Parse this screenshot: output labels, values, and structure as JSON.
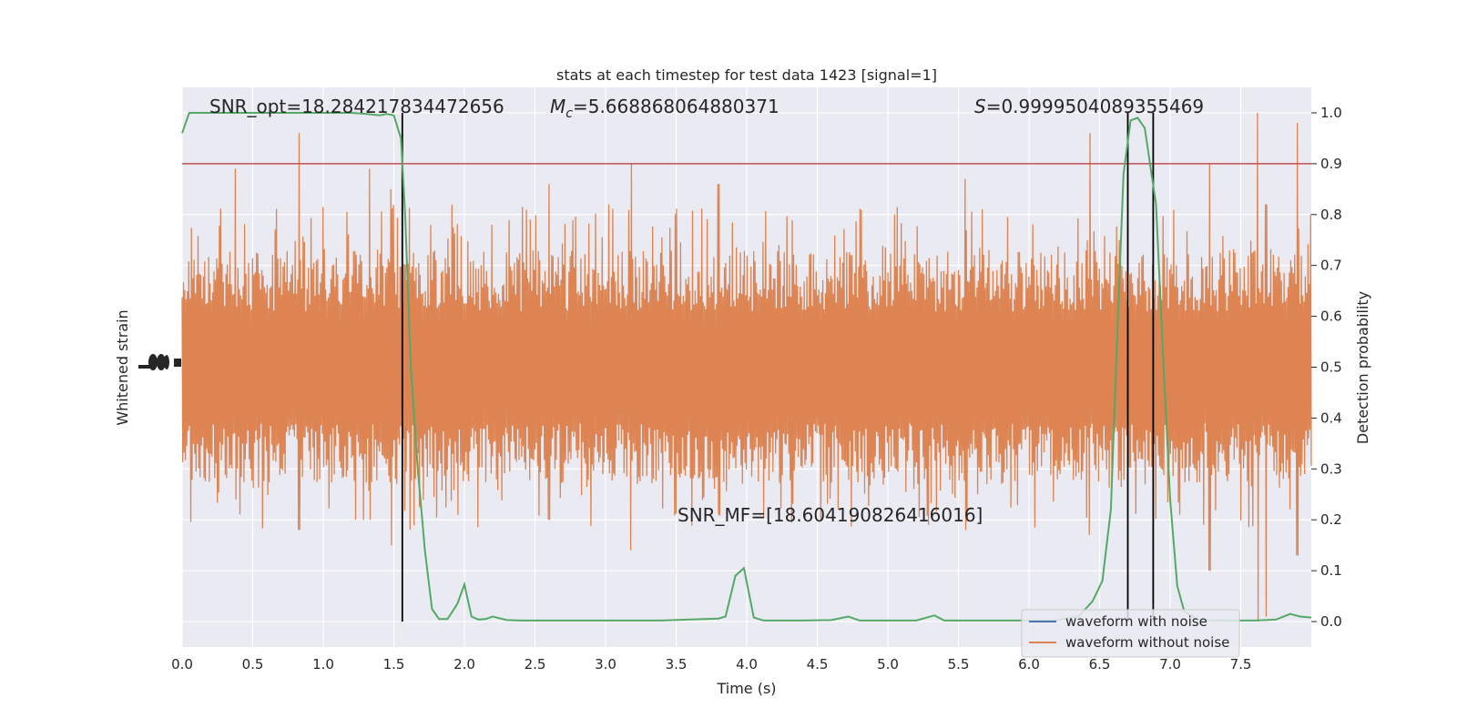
{
  "chart_data": {
    "type": "line",
    "title": "stats at each timestep for test data 1423 [signal=1]",
    "xlabel": "Time (s)",
    "ylabel_left": "Whitened strain",
    "ylabel_right": "Detection probability",
    "xlim": [
      0,
      8
    ],
    "ylim_right": [
      -0.05,
      1.05
    ],
    "x_ticks": [
      0,
      0.5,
      1.0,
      1.5,
      2.0,
      2.5,
      3.0,
      3.5,
      4.0,
      4.5,
      5.0,
      5.5,
      6.0,
      6.5,
      7.0,
      7.5
    ],
    "x_tick_labels": [
      "0.0",
      "0.5",
      "1.0",
      "1.5",
      "2.0",
      "2.5",
      "3.0",
      "3.5",
      "4.0",
      "4.5",
      "5.0",
      "5.5",
      "6.0",
      "6.5",
      "7.0",
      "7.5"
    ],
    "y_right_ticks": [
      0.0,
      0.1,
      0.2,
      0.3,
      0.4,
      0.5,
      0.6,
      0.7,
      0.8,
      0.9,
      1.0
    ],
    "y_right_tick_labels": [
      "0.0",
      "0.1",
      "0.2",
      "0.3",
      "0.4",
      "0.5",
      "0.6",
      "0.7",
      "0.8",
      "0.9",
      "1.0"
    ],
    "grid": true,
    "legend_position": "lower-right",
    "colors": {
      "background": "#eaeaf2",
      "grid": "#ffffff",
      "waveform_with_noise": "#4c72b0",
      "waveform_without_noise": "#dd8452",
      "probability": "#55a868",
      "threshold": "#c44e52",
      "event_line": "#000000"
    },
    "series": [
      {
        "name": "waveform with noise",
        "kind": "legend-only"
      },
      {
        "name": "waveform without noise",
        "kind": "strain",
        "center_prob": 0.5,
        "typical_half_width_prob": 0.2,
        "peaks": [
          {
            "x": 0.38,
            "max": 0.89,
            "min": 0.24
          },
          {
            "x": 0.83,
            "max": 0.96,
            "min": 0.18
          },
          {
            "x": 1.33,
            "max": 0.89,
            "min": 0.2
          },
          {
            "x": 1.48,
            "max": 0.85,
            "min": 0.15
          },
          {
            "x": 2.6,
            "max": 0.86,
            "min": 0.2
          },
          {
            "x": 3.18,
            "max": 0.9,
            "min": 0.14
          },
          {
            "x": 3.8,
            "max": 0.86,
            "min": 0.21
          },
          {
            "x": 5.55,
            "max": 0.87,
            "min": 0.18
          },
          {
            "x": 6.43,
            "max": 0.96,
            "min": 0.17
          },
          {
            "x": 7.28,
            "max": 0.9,
            "min": 0.1
          },
          {
            "x": 7.62,
            "max": 1.0,
            "min": 0.0
          },
          {
            "x": 7.68,
            "max": 0.82,
            "min": 0.01
          },
          {
            "x": 7.9,
            "max": 0.98,
            "min": 0.13
          }
        ]
      },
      {
        "name": "detection probability",
        "kind": "line",
        "x": [
          0.0,
          0.05,
          0.1,
          0.2,
          0.4,
          0.6,
          0.8,
          1.0,
          1.2,
          1.3,
          1.4,
          1.45,
          1.5,
          1.55,
          1.58,
          1.62,
          1.67,
          1.72,
          1.77,
          1.82,
          1.88,
          1.95,
          2.0,
          2.05,
          2.1,
          2.15,
          2.2,
          2.3,
          2.4,
          2.6,
          3.0,
          3.4,
          3.6,
          3.8,
          3.85,
          3.92,
          3.98,
          4.05,
          4.12,
          4.2,
          4.4,
          4.6,
          4.72,
          4.8,
          5.0,
          5.2,
          5.33,
          5.4,
          5.6,
          5.8,
          6.0,
          6.2,
          6.35,
          6.45,
          6.52,
          6.58,
          6.63,
          6.67,
          6.72,
          6.77,
          6.82,
          6.9,
          6.95,
          7.0,
          7.05,
          7.1,
          7.2,
          7.4,
          7.6,
          7.75,
          7.85,
          7.92,
          8.0
        ],
        "y": [
          0.96,
          1.0,
          1.0,
          1.0,
          1.0,
          1.0,
          1.0,
          1.0,
          1.0,
          0.998,
          0.995,
          0.998,
          0.995,
          0.95,
          0.8,
          0.5,
          0.3,
          0.14,
          0.025,
          0.005,
          0.005,
          0.035,
          0.073,
          0.01,
          0.004,
          0.005,
          0.01,
          0.003,
          0.002,
          0.002,
          0.002,
          0.002,
          0.004,
          0.006,
          0.01,
          0.09,
          0.105,
          0.008,
          0.002,
          0.002,
          0.002,
          0.003,
          0.01,
          0.002,
          0.002,
          0.002,
          0.012,
          0.002,
          0.002,
          0.002,
          0.002,
          0.003,
          0.01,
          0.04,
          0.08,
          0.22,
          0.6,
          0.88,
          0.985,
          0.99,
          0.97,
          0.82,
          0.52,
          0.24,
          0.07,
          0.02,
          0.003,
          0.002,
          0.002,
          0.004,
          0.015,
          0.01,
          0.008
        ]
      }
    ],
    "reference_lines": {
      "threshold": 0.9,
      "event_times": [
        1.56,
        6.7,
        6.88
      ]
    },
    "annotations": {
      "snr_opt": "SNR_opt=18.284217834472656",
      "mc_symbol": "M",
      "mc_subscript": "c",
      "mc_value": "=5.668868064880371",
      "s_symbol": "S",
      "s_value": "=0.9999504089355469",
      "snr_mf": "SNR_MF=[18.604190826416016]"
    },
    "legend": [
      {
        "label": "waveform with noise",
        "color": "#4c72b0"
      },
      {
        "label": "waveform without noise",
        "color": "#dd8452"
      }
    ]
  }
}
